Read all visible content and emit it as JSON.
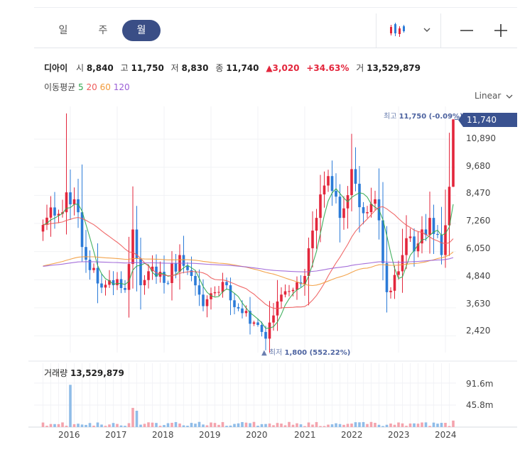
{
  "tabs": [
    {
      "label": "일"
    },
    {
      "label": "주"
    },
    {
      "label": "월",
      "active": true
    }
  ],
  "icons": {
    "chart_type": "candlestick-icon",
    "dropdown": "chevron-down-icon",
    "zoom_out": "minus-icon",
    "zoom_in": "plus-icon"
  },
  "stock": {
    "name": "디아이",
    "open_label": "시",
    "open": "8,840",
    "high_label": "고",
    "high": "11,750",
    "low_label": "저",
    "low": "8,830",
    "close_label": "종",
    "close": "11,740",
    "change": "▲3,020",
    "change_pct": "+34.63%",
    "volume_label": "거",
    "volume": "13,529,879"
  },
  "moving_average": {
    "label": "이동평균",
    "periods": [
      {
        "value": "5",
        "color": "#2fa84f"
      },
      {
        "value": "20",
        "color": "#ee5a5a"
      },
      {
        "value": "60",
        "color": "#f29a3a"
      },
      {
        "value": "120",
        "color": "#9b5fd6"
      }
    ]
  },
  "scale_mode": "Linear",
  "annotations": {
    "high_prefix": "최고",
    "high_text": "11,750 (-0.09%)",
    "high_arrow": "▼",
    "low_prefix": "최저",
    "low_text": "1,800 (552.22%)",
    "low_arrow": "▲"
  },
  "current_price_tag": "11,740",
  "volume_panel": {
    "label": "거래량",
    "value": "13,529,879"
  },
  "colors": {
    "up": "#e3263c",
    "down": "#2b7bd8",
    "accent": "#3a4e86",
    "vol_up": "#f4a3ad",
    "vol_down": "#8fbce8"
  },
  "chart_data": {
    "type": "candlestick",
    "period": "monthly",
    "x_start": "2015-06",
    "ylim": [
      1700,
      12300
    ],
    "y_ticks": [
      "10,890",
      "9,680",
      "8,470",
      "7,260",
      "6,050",
      "4,840",
      "3,630",
      "2,420"
    ],
    "y_tick_values": [
      10890,
      9680,
      8470,
      7260,
      6050,
      4840,
      3630,
      2420
    ],
    "x_ticks": [
      "2016",
      "2017",
      "2018",
      "2019",
      "2020",
      "2021",
      "2022",
      "2023",
      "2024"
    ],
    "x_tick_months": [
      "2016-01",
      "2017-01",
      "2018-01",
      "2019-01",
      "2020-01",
      "2021-01",
      "2022-01",
      "2023-01",
      "2024-01"
    ],
    "volume_ticks": [
      "91.6m",
      "45.8m"
    ],
    "volume_tick_values": [
      91.6,
      45.8
    ],
    "volume_unit": "m",
    "anchors": [
      {
        "month": "2015-06",
        "close": 7200
      },
      {
        "month": "2015-09",
        "close": 7600
      },
      {
        "month": "2015-12",
        "close": 8600
      },
      {
        "month": "2016-02",
        "close": 8300
      },
      {
        "month": "2016-05",
        "close": 5700
      },
      {
        "month": "2016-09",
        "close": 4500
      },
      {
        "month": "2016-12",
        "close": 4600
      },
      {
        "month": "2017-03",
        "close": 4400
      },
      {
        "month": "2017-05",
        "close": 7000
      },
      {
        "month": "2017-07",
        "close": 4600
      },
      {
        "month": "2017-10",
        "close": 5400
      },
      {
        "month": "2018-01",
        "close": 4700
      },
      {
        "month": "2018-05",
        "close": 5900
      },
      {
        "month": "2018-08",
        "close": 5000
      },
      {
        "month": "2018-11",
        "close": 3700
      },
      {
        "month": "2019-02",
        "close": 4300
      },
      {
        "month": "2019-05",
        "close": 4600
      },
      {
        "month": "2019-08",
        "close": 3600
      },
      {
        "month": "2019-12",
        "close": 3000
      },
      {
        "month": "2020-03",
        "close": 2300
      },
      {
        "month": "2020-06",
        "close": 3900
      },
      {
        "month": "2020-10",
        "close": 4400
      },
      {
        "month": "2021-01",
        "close": 5000
      },
      {
        "month": "2021-04",
        "close": 7500
      },
      {
        "month": "2021-07",
        "close": 9300
      },
      {
        "month": "2021-10",
        "close": 7500
      },
      {
        "month": "2022-01",
        "close": 9600
      },
      {
        "month": "2022-04",
        "close": 7700
      },
      {
        "month": "2022-07",
        "close": 8300
      },
      {
        "month": "2022-10",
        "close": 4300
      },
      {
        "month": "2023-01",
        "close": 5200
      },
      {
        "month": "2023-04",
        "close": 6700
      },
      {
        "month": "2023-06",
        "close": 6400
      },
      {
        "month": "2023-09",
        "close": 7500
      },
      {
        "month": "2023-12",
        "close": 5900
      },
      {
        "month": "2024-02",
        "close": 8840
      },
      {
        "month": "2024-03",
        "close": 11740
      }
    ],
    "last_candle": {
      "month": "2024-03",
      "open": 8840,
      "high": 11750,
      "low": 8830,
      "close": 11740,
      "volume": 13529879
    },
    "all_time_high": 11750,
    "all_time_low": 1800,
    "all_time_low_month": "2020-03",
    "volume_spikes": [
      {
        "month": "2016-01",
        "volume": 88
      },
      {
        "month": "2017-05",
        "volume": 40
      },
      {
        "month": "2017-06",
        "volume": 34
      }
    ],
    "moving_averages": [
      5,
      20,
      60,
      120
    ]
  }
}
